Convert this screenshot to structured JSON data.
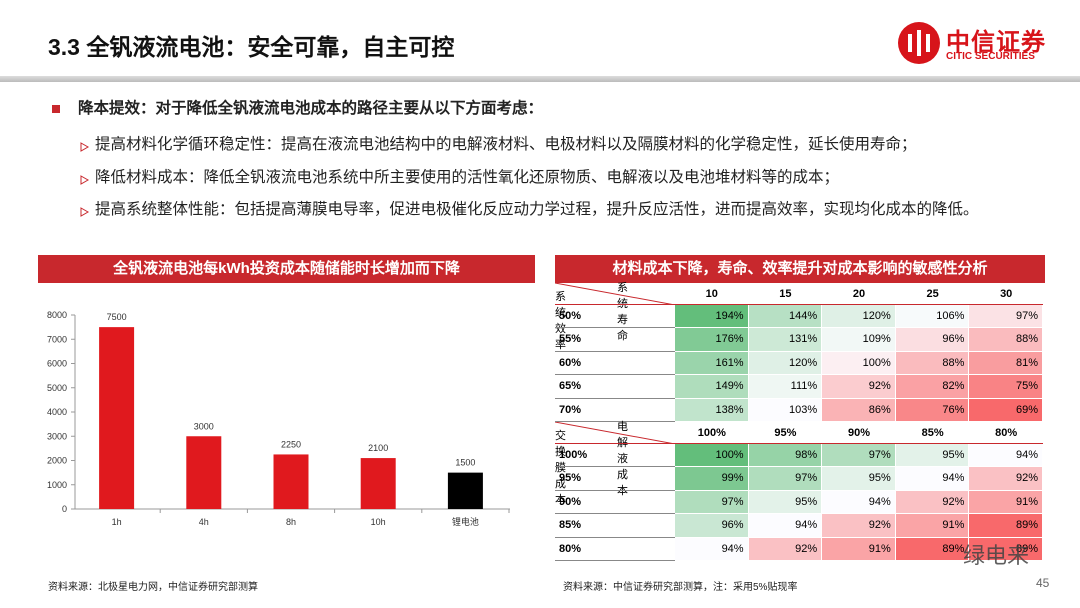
{
  "header": {
    "title": "3.3 全钒液流电池：安全可靠，自主可控",
    "logo_cn": "中信证券",
    "logo_en": "CITIC SECURITIES"
  },
  "bullets": {
    "main": "降本提效：对于降低全钒液流电池成本的路径主要从以下方面考虑：",
    "items": [
      "提高材料化学循环稳定性：提高在液流电池结构中的电解液材料、电极材料以及隔膜材料的化学稳定性，延长使用寿命；",
      "降低材料成本：降低全钒液流电池系统中所主要使用的活性氧化还原物质、电解液以及电池堆材料等的成本；",
      "提高系统整体性能：包括提高薄膜电导率，促进电极催化反应动力学过程，提升反应活性，进而提高效率，实现均化成本的降低。"
    ]
  },
  "chart_data": {
    "type": "bar",
    "title": "全钒液流电池每kWh投资成本随储能时长增加而下降",
    "categories": [
      "1h",
      "4h",
      "8h",
      "10h",
      "锂电池"
    ],
    "values": [
      7500,
      3000,
      2250,
      2100,
      1500
    ],
    "colors": [
      "#e0191e",
      "#e0191e",
      "#e0191e",
      "#e0191e",
      "#000000"
    ],
    "ylim": [
      0,
      8000
    ],
    "yticks": [
      0,
      1000,
      2000,
      3000,
      4000,
      5000,
      6000,
      7000,
      8000
    ],
    "data_labels": true
  },
  "left_source": "资料来源：北极星电力网，中信证券研究部测算",
  "table": {
    "title": "材料成本下降，寿命、效率提升对成本影响的敏感性分析",
    "blocks": [
      {
        "corner_row": "系统效率",
        "corner_col": "系统寿命",
        "columns": [
          10,
          15,
          20,
          25,
          30
        ],
        "rows": [
          {
            "label": "50%",
            "cells": [
              "194%",
              "144%",
              "120%",
              "106%",
              "97%"
            ]
          },
          {
            "label": "55%",
            "cells": [
              "176%",
              "131%",
              "109%",
              "96%",
              "88%"
            ]
          },
          {
            "label": "60%",
            "cells": [
              "161%",
              "120%",
              "100%",
              "88%",
              "81%"
            ]
          },
          {
            "label": "65%",
            "cells": [
              "149%",
              "111%",
              "92%",
              "82%",
              "75%"
            ]
          },
          {
            "label": "70%",
            "cells": [
              "138%",
              "103%",
              "86%",
              "76%",
              "69%"
            ]
          }
        ]
      },
      {
        "corner_row": "交换膜成本",
        "corner_col": "电解液成本",
        "columns": [
          "100%",
          "95%",
          "90%",
          "85%",
          "80%"
        ],
        "rows": [
          {
            "label": "100%",
            "cells": [
              "100%",
              "98%",
              "97%",
              "95%",
              "94%"
            ]
          },
          {
            "label": "95%",
            "cells": [
              "99%",
              "97%",
              "95%",
              "94%",
              "92%"
            ]
          },
          {
            "label": "90%",
            "cells": [
              "97%",
              "95%",
              "94%",
              "92%",
              "91%"
            ]
          },
          {
            "label": "85%",
            "cells": [
              "96%",
              "94%",
              "92%",
              "91%",
              "89%"
            ]
          },
          {
            "label": "80%",
            "cells": [
              "94%",
              "92%",
              "91%",
              "89%",
              "89%"
            ]
          }
        ]
      }
    ]
  },
  "right_source": "资料来源：中信证券研究部测算，注：采用5%贴现率",
  "page_number": "45",
  "watermark": "绿电来"
}
